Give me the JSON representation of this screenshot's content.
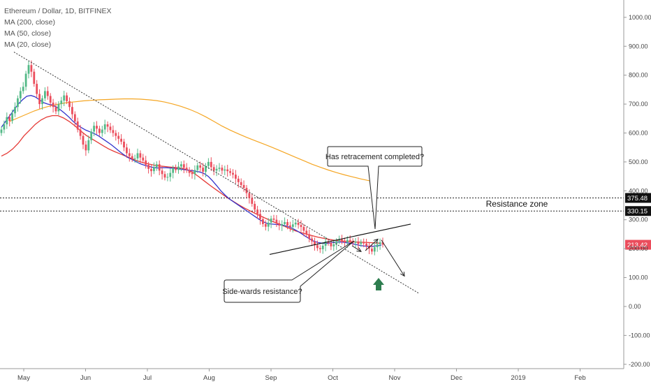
{
  "legend": {
    "title": "Ethereum / Dollar, 1D, BITFINEX",
    "ma200": "MA (200, close)",
    "ma50": "MA (50, close)",
    "ma20": "MA (20, close)"
  },
  "colors": {
    "up": "#53b987",
    "down": "#eb4d5c",
    "ma200": "#f5a623",
    "ma50": "#e53935",
    "ma20": "#3333cc",
    "axis": "#888888",
    "arrow_green": "#2e7d4f"
  },
  "chart_data": {
    "type": "candlestick",
    "title": "Ethereum / Dollar, 1D, BITFINEX",
    "x_ticks": [
      "May",
      "Jun",
      "Jul",
      "Aug",
      "Sep",
      "Oct",
      "Nov",
      "Dec",
      "2019",
      "Feb"
    ],
    "x_tick_months": [
      0,
      1,
      2,
      3,
      4,
      5,
      6,
      7,
      8,
      9
    ],
    "y_ticks": [
      "1000.00",
      "900.00",
      "800.00",
      "700.00",
      "600.00",
      "500.00",
      "400.00",
      "300.00",
      "200.00",
      "100.00",
      "0.00",
      "-100.00",
      "-200.00"
    ],
    "y_tick_values": [
      1000,
      900,
      800,
      700,
      600,
      500,
      400,
      300,
      200,
      100,
      0,
      -100,
      -200
    ],
    "ylim": [
      -215,
      1060
    ],
    "price_lines": [
      {
        "label": "375.48",
        "value": 375.48
      },
      {
        "label": "330.15",
        "value": 330.15
      }
    ],
    "last_price": {
      "label": "213.42",
      "value": 213.42
    },
    "candles_close": [
      612,
      630,
      655,
      642,
      668,
      690,
      720,
      745,
      760,
      805,
      835,
      812,
      770,
      735,
      700,
      720,
      745,
      728,
      705,
      690,
      675,
      700,
      712,
      730,
      710,
      690,
      665,
      640,
      612,
      590,
      560,
      540,
      575,
      605,
      625,
      615,
      600,
      612,
      630,
      622,
      610,
      600,
      590,
      580,
      570,
      550,
      530,
      520,
      510,
      512,
      530,
      515,
      505,
      490,
      476,
      468,
      482,
      492,
      470,
      458,
      446,
      448,
      462,
      478,
      472,
      484,
      492,
      480,
      472,
      462,
      458,
      472,
      488,
      480,
      466,
      486,
      500,
      482,
      470,
      476,
      480,
      470,
      474,
      468,
      462,
      456,
      442,
      430,
      420,
      410,
      392,
      375,
      355,
      335,
      320,
      302,
      285,
      276,
      290,
      304,
      300,
      288,
      280,
      285,
      292,
      280,
      275,
      284,
      290,
      282,
      275,
      262,
      250,
      235,
      225,
      212,
      202,
      198,
      210,
      225,
      220,
      208,
      215,
      226,
      232,
      228,
      222,
      230,
      226,
      220,
      224,
      216,
      222,
      218,
      210,
      200,
      190,
      205,
      215,
      222,
      214
    ],
    "ma20_values": [
      620,
      640,
      660,
      680,
      700,
      715,
      727,
      730,
      725,
      715,
      705,
      700,
      697,
      690,
      680,
      668,
      655,
      640,
      628,
      618,
      610,
      604,
      598,
      590,
      580,
      570,
      560,
      548,
      536,
      525,
      515,
      508,
      500,
      493,
      488,
      484,
      481,
      479,
      480,
      480,
      479,
      478,
      476,
      474,
      472,
      470,
      468,
      465,
      460,
      450,
      435,
      418,
      400,
      385,
      372,
      362,
      352,
      342,
      332,
      322,
      312,
      302,
      293,
      287,
      285,
      284,
      283,
      280,
      276,
      270,
      262,
      253,
      243,
      234,
      226,
      221,
      219,
      218,
      220,
      222,
      223,
      222,
      220,
      218,
      214,
      211,
      209,
      208,
      208,
      210,
      212
    ],
    "ma50_values": [
      520,
      530,
      545,
      565,
      590,
      610,
      630,
      645,
      655,
      660,
      660,
      652,
      640,
      625,
      608,
      592,
      580,
      568,
      556,
      545,
      536,
      528,
      520,
      512,
      504,
      498,
      493,
      489,
      486,
      484,
      482,
      480,
      478,
      472,
      462,
      448,
      433,
      418,
      404,
      390,
      376,
      364,
      352,
      341,
      331,
      321,
      312,
      303,
      294,
      286,
      278,
      270,
      262,
      256,
      250,
      245,
      240,
      236,
      232,
      229,
      227,
      225,
      224,
      223,
      222,
      221,
      220,
      219
    ],
    "ma200_values": [
      640,
      652,
      664,
      676,
      686,
      694,
      700,
      705,
      708,
      711,
      713,
      715,
      716,
      717,
      718,
      718,
      717,
      715,
      712,
      707,
      700,
      692,
      682,
      670,
      656,
      640,
      624,
      610,
      597,
      585,
      574,
      563,
      552,
      540,
      528,
      516,
      504,
      492,
      482,
      472,
      463,
      455,
      448,
      441,
      435,
      430
    ],
    "annotations": [
      {
        "text": "Has retracement completed?"
      },
      {
        "text": "Side-wards resistance?"
      },
      {
        "text": "Resistance zone"
      }
    ]
  }
}
